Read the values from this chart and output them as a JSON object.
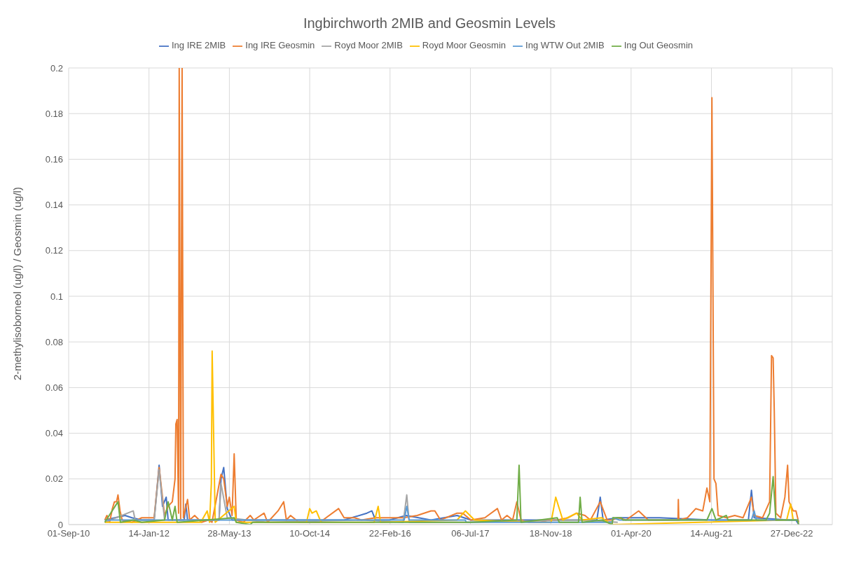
{
  "chart_data": {
    "type": "line",
    "title": "Ingbirchworth 2MIB and Geosmin Levels",
    "ylabel": "2-methylisoborneol (ug/l) / Geosmin (ug/l)",
    "legend": "top",
    "grid": true,
    "marker": "none",
    "line_style": "solid",
    "xlim": [
      "2010-09-01",
      "2023-09-05"
    ],
    "xticks": [
      {
        "value": "2010-09-01",
        "label": "01-Sep-10"
      },
      {
        "value": "2012-01-14",
        "label": "14-Jan-12"
      },
      {
        "value": "2013-05-28",
        "label": "28-May-13"
      },
      {
        "value": "2014-10-10",
        "label": "10-Oct-14"
      },
      {
        "value": "2016-02-22",
        "label": "22-Feb-16"
      },
      {
        "value": "2017-07-06",
        "label": "06-Jul-17"
      },
      {
        "value": "2018-11-18",
        "label": "18-Nov-18"
      },
      {
        "value": "2020-04-01",
        "label": "01-Apr-20"
      },
      {
        "value": "2021-08-14",
        "label": "14-Aug-21"
      },
      {
        "value": "2022-12-27",
        "label": "27-Dec-22"
      }
    ],
    "ylim": [
      0,
      0.2
    ],
    "yticks": [
      0,
      0.02,
      0.04,
      0.06,
      0.08,
      0.1,
      0.12,
      0.14,
      0.16,
      0.18,
      0.2
    ],
    "series": [
      {
        "name": "Ing IRE 2MIB",
        "color": "#4472c4",
        "x": [
          "2011-04-14",
          "2011-08-18",
          "2011-09-30",
          "2011-11-30",
          "2012-02-15",
          "2012-03-17",
          "2012-04-07",
          "2012-04-30",
          "2012-05-12",
          "2012-08-20",
          "2012-08-30",
          "2012-09-10",
          "2013-01-18",
          "2013-03-25",
          "2013-04-06",
          "2013-04-23",
          "2013-05-15",
          "2013-06-14",
          "2014-06-13",
          "2015-05-12",
          "2015-10-01",
          "2015-11-01",
          "2015-11-23",
          "2016-02-18",
          "2016-06-01",
          "2016-11-03",
          "2017-04-14",
          "2017-07-09",
          "2019-09-01",
          "2019-09-22",
          "2019-10-10",
          "2020-01-09",
          "2020-09-24",
          "2021-08-17",
          "2022-04-01",
          "2022-04-20",
          "2022-05-07",
          "2022-12-10",
          "2023-01-22",
          "2023-02-08"
        ],
        "values": [
          0.002,
          0.004,
          0.003,
          0.002,
          0.002,
          0.026,
          0.008,
          0.012,
          0.002,
          0.002,
          0.009,
          0.002,
          0.002,
          0.002,
          0.02,
          0.025,
          0.007,
          0.002,
          0.002,
          0.002,
          0.005,
          0.006,
          0.002,
          0.002,
          0.004,
          0.002,
          0.004,
          0.002,
          0.002,
          0.012,
          0.002,
          0.003,
          0.003,
          0.002,
          0.002,
          0.015,
          0.003,
          0.002,
          0.002,
          0
        ]
      },
      {
        "name": "Ing IRE Geosmin",
        "color": "#ed7d31",
        "x": [
          "2011-04-14",
          "2011-04-27",
          "2011-05-14",
          "2011-05-31",
          "2011-06-13",
          "2011-06-26",
          "2011-07-05",
          "2011-07-18",
          "2011-07-31",
          "2011-09-30",
          "2011-11-30",
          "2012-02-15",
          "2012-03-17",
          "2012-04-07",
          "2012-04-20",
          "2012-05-12",
          "2012-06-07",
          "2012-06-24",
          "2012-06-29",
          "2012-07-07",
          "2012-07-16",
          "2012-07-20",
          "2012-07-29",
          "2012-08-07",
          "2012-08-15",
          "2012-09-10",
          "2012-09-23",
          "2012-10-24",
          "2012-12-06",
          "2013-01-18",
          "2013-02-09",
          "2013-04-06",
          "2013-04-23",
          "2013-05-15",
          "2013-05-28",
          "2013-06-14",
          "2013-06-27",
          "2013-07-10",
          "2013-08-23",
          "2013-10-05",
          "2013-10-27",
          "2013-12-30",
          "2014-01-21",
          "2014-03-27",
          "2014-05-01",
          "2014-05-18",
          "2014-06-13",
          "2014-08-04",
          "2014-12-12",
          "2015-04-08",
          "2015-05-12",
          "2015-07-16",
          "2015-08-28",
          "2015-11-23",
          "2016-02-18",
          "2016-05-14",
          "2016-08-09",
          "2016-11-03",
          "2016-11-27",
          "2017-01-01",
          "2017-04-14",
          "2017-05-19",
          "2017-07-09",
          "2017-10-04",
          "2017-12-21",
          "2018-01-16",
          "2018-02-19",
          "2018-03-26",
          "2018-04-21",
          "2018-05-17",
          "2018-07-08",
          "2018-09-15",
          "2018-11-06",
          "2018-12-28",
          "2019-03-07",
          "2019-04-28",
          "2019-06-19",
          "2019-07-23",
          "2019-09-22",
          "2019-11-04",
          "2019-12-05",
          "2020-01-09",
          "2020-03-01",
          "2020-05-18",
          "2020-07-17",
          "2020-09-24",
          "2020-12-04",
          "2021-01-18",
          "2021-01-20",
          "2021-01-23",
          "2021-03-18",
          "2021-05-09",
          "2021-06-21",
          "2021-07-17",
          "2021-08-04",
          "2021-08-17",
          "2021-08-30",
          "2021-09-11",
          "2021-09-25",
          "2021-11-15",
          "2022-01-06",
          "2022-02-27",
          "2022-04-20",
          "2022-05-07",
          "2022-06-28",
          "2022-08-11",
          "2022-08-23",
          "2022-09-02",
          "2022-09-09",
          "2022-09-19",
          "2022-10-19",
          "2022-11-14",
          "2022-12-01",
          "2022-12-10",
          "2023-01-05",
          "2023-01-22",
          "2023-02-08"
        ],
        "values": [
          0.002,
          0.004,
          0.001,
          0.007,
          0.01,
          0.01,
          0.013,
          0.006,
          0.002,
          0.001,
          0.003,
          0.003,
          0.025,
          0.012,
          0.004,
          0.008,
          0.01,
          0.02,
          0.044,
          0.046,
          0.005,
          0.2,
          0.002,
          0.2,
          0.003,
          0.011,
          0.002,
          0.004,
          0.001,
          0.002,
          0.001,
          0.022,
          0.02,
          0.008,
          0.012,
          0.004,
          0.031,
          0.002,
          0.001,
          0.004,
          0.002,
          0.005,
          0.001,
          0.006,
          0.01,
          0.002,
          0.004,
          0.001,
          0.001,
          0.007,
          0.003,
          0.003,
          0.002,
          0.003,
          0.003,
          0.003,
          0.004,
          0.006,
          0.006,
          0.002,
          0.005,
          0.005,
          0.002,
          0.003,
          0.007,
          0.002,
          0.004,
          0.002,
          0.01,
          0.002,
          0.001,
          0.001,
          0.002,
          0.002,
          0.003,
          0.005,
          0.004,
          0.002,
          0.01,
          0.002,
          0.002,
          0.003,
          0.002,
          0.006,
          0.002,
          0.002,
          0.002,
          0.002,
          0.011,
          0.002,
          0.003,
          0.007,
          0.006,
          0.016,
          0.01,
          0.187,
          0.02,
          0.018,
          0.004,
          0.003,
          0.004,
          0.003,
          0.012,
          0.004,
          0.003,
          0.01,
          0.074,
          0.073,
          0.05,
          0.005,
          0.003,
          0.012,
          0.026,
          0.01,
          0.006,
          0.006,
          0.001
        ]
      },
      {
        "name": "Royd Moor 2MIB",
        "color": "#a5a5a5",
        "x": [
          "2011-04-14",
          "2011-10-08",
          "2011-10-20",
          "2012-02-15",
          "2012-03-17",
          "2012-04-20",
          "2013-03-25",
          "2013-04-06",
          "2013-05-15",
          "2014-01-21",
          "2015-08-28",
          "2016-05-14",
          "2016-06-05",
          "2016-06-20",
          "2017-06-04",
          "2019-06-10",
          "2020-01-09"
        ],
        "values": [
          0.001,
          0.006,
          0.002,
          0.002,
          0.024,
          0.002,
          0.002,
          0.018,
          0.003,
          0.001,
          0.002,
          0.001,
          0.013,
          0.001,
          0.001,
          0.002,
          0.001
        ]
      },
      {
        "name": "Royd Moor Geosmin",
        "color": "#ffc000",
        "x": [
          "2011-04-14",
          "2012-12-01",
          "2013-01-10",
          "2013-01-25",
          "2013-02-05",
          "2013-02-10",
          "2013-03-01",
          "2013-06-27",
          "2013-07-10",
          "2014-09-20",
          "2014-10-10",
          "2014-10-25",
          "2014-11-20",
          "2014-12-20",
          "2015-11-15",
          "2015-12-10",
          "2015-12-25",
          "2017-04-14",
          "2017-06-05",
          "2017-08-01",
          "2018-09-15",
          "2018-11-20",
          "2018-12-19",
          "2019-02-01",
          "2019-04-28",
          "2019-06-01",
          "2019-10-01",
          "2019-12-05",
          "2022-11-25",
          "2022-12-20",
          "2023-01-05"
        ],
        "values": [
          0.001,
          0.001,
          0.006,
          0.001,
          0.018,
          0.076,
          0.001,
          0.008,
          0.001,
          0.001,
          0.007,
          0.005,
          0.006,
          0.001,
          0.001,
          0.008,
          0.001,
          0.002,
          0.006,
          0.002,
          0.001,
          0.001,
          0.012,
          0.002,
          0.005,
          0.002,
          0.003,
          0,
          0.002,
          0.009,
          0.002
        ]
      },
      {
        "name": "Ing WTW Out 2MIB",
        "color": "#5b9bd5",
        "x": [
          "2011-04-14",
          "2016-05-20",
          "2016-06-05",
          "2016-06-20",
          "2017-06-04",
          "2017-06-10",
          "2019-12-05",
          "2019-12-10",
          "2020-01-20",
          "2022-04-20",
          "2022-05-07",
          "2022-05-20",
          "2023-02-08"
        ],
        "values": [
          0.002,
          0.002,
          0.008,
          0.002,
          0.002,
          0.001,
          0.001,
          0.003,
          0.002,
          0.002,
          0.006,
          0.002,
          0.002
        ]
      },
      {
        "name": "Ing Out Geosmin",
        "color": "#70ad47",
        "x": [
          "2011-04-14",
          "2011-07-05",
          "2011-07-20",
          "2011-10-08",
          "2011-11-30",
          "2012-04-20",
          "2012-05-12",
          "2012-06-07",
          "2012-06-24",
          "2012-07-07",
          "2013-06-27",
          "2013-07-10",
          "2013-10-05",
          "2013-10-20",
          "2017-07-09",
          "2018-04-21",
          "2018-05-05",
          "2018-05-17",
          "2018-12-28",
          "2019-01-10",
          "2019-05-10",
          "2019-05-20",
          "2019-06-01",
          "2019-10-01",
          "2019-12-05",
          "2019-12-10",
          "2020-02-01",
          "2020-02-10",
          "2021-07-17",
          "2021-08-17",
          "2021-09-11",
          "2021-11-15",
          "2021-11-25",
          "2022-07-20",
          "2022-08-11",
          "2022-09-02",
          "2022-09-19",
          "2023-02-01",
          "2023-02-08"
        ],
        "values": [
          0.001,
          0.01,
          0.001,
          0.002,
          0.001,
          0.002,
          0.01,
          0.002,
          0.008,
          0.001,
          0.003,
          0.001,
          0,
          0.001,
          0.001,
          0.002,
          0.026,
          0.001,
          0.003,
          0.001,
          0.001,
          0.012,
          0.001,
          0.002,
          0,
          0.003,
          0.003,
          0.002,
          0.002,
          0.007,
          0.002,
          0.004,
          0.002,
          0.002,
          0.005,
          0.021,
          0.002,
          0.002,
          0
        ]
      }
    ]
  }
}
